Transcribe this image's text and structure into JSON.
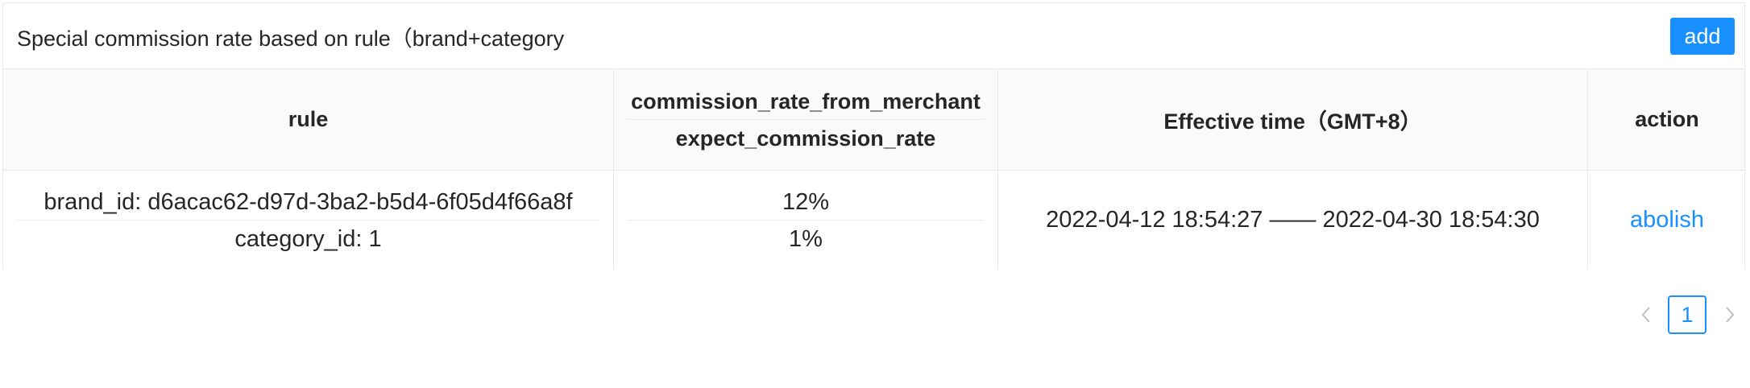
{
  "panel": {
    "title": "Special commission rate based on rule（brand+category",
    "add_label": "add"
  },
  "table": {
    "headers": {
      "rule": "rule",
      "commission_from_merchant": "commission_rate_from_merchant",
      "expect_commission": "expect_commission_rate",
      "effective_time": "Effective time（GMT+8）",
      "action": "action"
    },
    "rows": [
      {
        "brand_id": "brand_id: d6acac62-d97d-3ba2-b5d4-6f05d4f66a8f",
        "category_id": "category_id: 1",
        "commission_rate_from_merchant": "12%",
        "expect_commission_rate": "1%",
        "effective_time": "2022-04-12 18:54:27 —— 2022-04-30 18:54:30",
        "action_label": "abolish"
      }
    ]
  },
  "pagination": {
    "current_page": "1",
    "prev_icon": "chevron-left-icon",
    "next_icon": "chevron-right-icon"
  },
  "colors": {
    "accent": "#1890ff",
    "header_bg": "#fafafa",
    "border": "#e8e8e8",
    "text": "#262626",
    "disabled": "#bfbfbf"
  }
}
